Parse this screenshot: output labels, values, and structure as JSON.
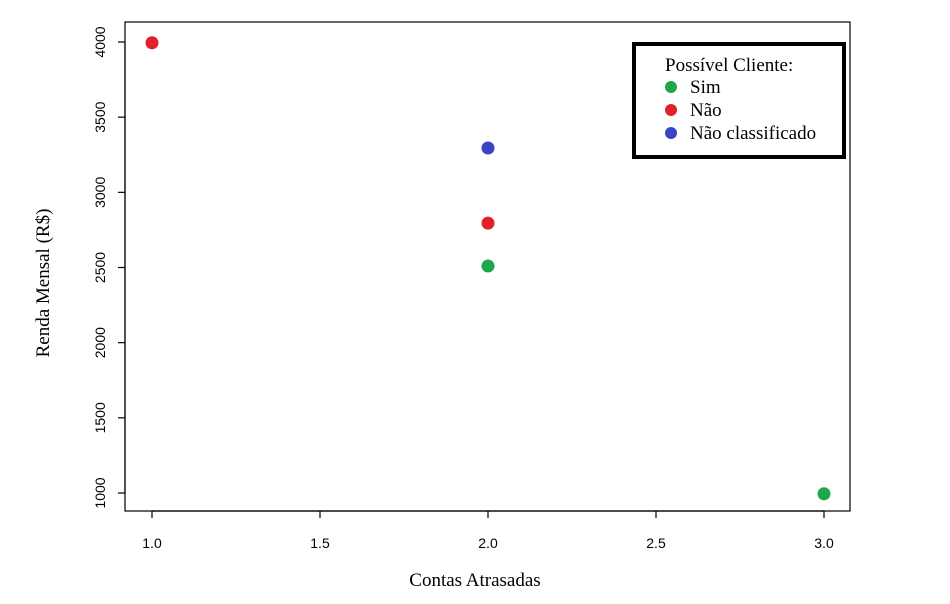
{
  "chart_data": {
    "type": "scatter",
    "xlabel": "Contas Atrasadas",
    "ylabel": "Renda Mensal (R$)",
    "xlim": [
      1.0,
      3.0
    ],
    "ylim": [
      1000,
      4000
    ],
    "x_ticks": [
      "1.0",
      "1.5",
      "2.0",
      "2.5",
      "3.0"
    ],
    "y_ticks": [
      "1000",
      "1500",
      "2000",
      "2500",
      "3000",
      "3500",
      "4000"
    ],
    "grid": false,
    "legend_position": "top-right",
    "legend_title": "Possível Cliente:",
    "series": [
      {
        "name": "Sim",
        "color": "#1fa64a",
        "points": [
          [
            2.0,
            2510
          ],
          [
            3.0,
            995
          ]
        ]
      },
      {
        "name": "Não",
        "color": "#e0222b",
        "points": [
          [
            1.0,
            3995
          ],
          [
            2.0,
            2795
          ]
        ]
      },
      {
        "name": "Não classificado",
        "color": "#3a45c4",
        "points": [
          [
            2.0,
            3295
          ]
        ]
      }
    ]
  }
}
